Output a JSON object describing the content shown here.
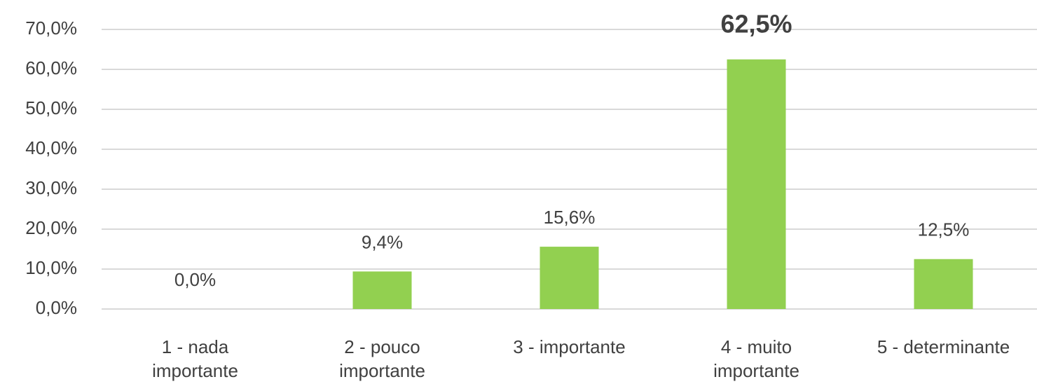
{
  "chart_data": {
    "type": "bar",
    "categories": [
      "1 - nada\nimportante",
      "2 - pouco\nimportante",
      "3 - importante",
      "4 - muito\nimportante",
      "5 - determinante"
    ],
    "values": [
      0,
      9.4,
      15.6,
      62.5,
      12.5
    ],
    "value_labels": [
      "0,0%",
      "9,4%",
      "15,6%",
      "62,5%",
      "12,5%"
    ],
    "color": "#92d050",
    "ylim": [
      0,
      70
    ],
    "yticks": [
      {
        "value": 0,
        "label": "0,0%"
      },
      {
        "value": 10,
        "label": "10,0%"
      },
      {
        "value": 20,
        "label": "20,0%"
      },
      {
        "value": 30,
        "label": "30,0%"
      },
      {
        "value": 40,
        "label": "40,0%"
      },
      {
        "value": 50,
        "label": "50,0%"
      },
      {
        "value": 60,
        "label": "60,0%"
      },
      {
        "value": 70,
        "label": "70,0%"
      }
    ],
    "grid": true
  }
}
